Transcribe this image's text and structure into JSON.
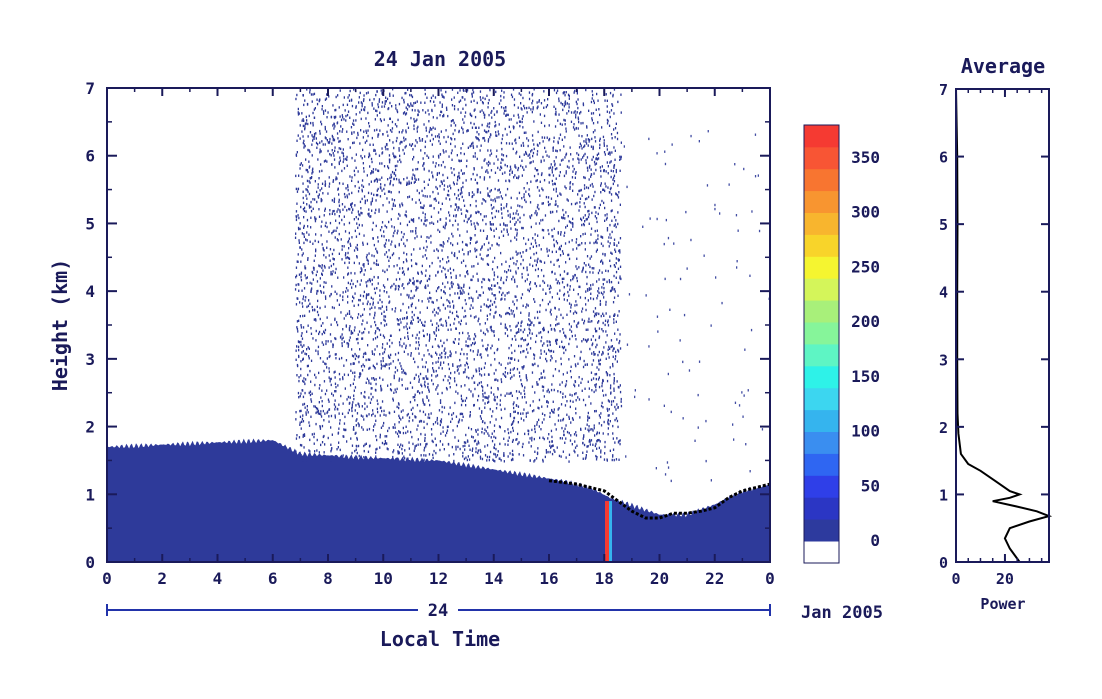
{
  "chart_data": [
    {
      "type": "heatmap",
      "title": "24 Jan 2005",
      "xlabel": "Local Time",
      "ylabel": "Height (km)",
      "xlim": [
        0,
        24
      ],
      "ylim": [
        0,
        7
      ],
      "x_ticks": [
        "0",
        "2",
        "4",
        "6",
        "8",
        "10",
        "12",
        "14",
        "16",
        "18",
        "20",
        "22",
        "0"
      ],
      "y_ticks": [
        "0",
        "1",
        "2",
        "3",
        "4",
        "5",
        "6",
        "7"
      ],
      "date_axis": {
        "day_label": "24",
        "month_label": "Jan 2005"
      },
      "colorbar": {
        "ticks": [
          "0",
          "50",
          "100",
          "150",
          "200",
          "250",
          "300",
          "350"
        ],
        "range": [
          -20,
          380
        ],
        "colors": [
          "#ffffff",
          "#2d3a9e",
          "#2b36c4",
          "#2f3fe8",
          "#2f66f2",
          "#3a8ef0",
          "#35b4ee",
          "#3cd6f0",
          "#2ef2e8",
          "#5ef5c4",
          "#86f59a",
          "#a8f07a",
          "#d4f55a",
          "#f5f530",
          "#f8d42a",
          "#f8b52e",
          "#f89530",
          "#f87530",
          "#f85534",
          "#f53a32"
        ]
      },
      "layers": [
        {
          "name": "boundary layer echo",
          "x_start": 0,
          "x_end": 24,
          "top_km": [
            [
              0,
              1.7
            ],
            [
              3,
              1.75
            ],
            [
              6,
              1.8
            ],
            [
              7,
              1.6
            ],
            [
              9,
              1.55
            ],
            [
              12,
              1.5
            ],
            [
              15,
              1.3
            ],
            [
              16.5,
              1.2
            ],
            [
              17.5,
              1.1
            ],
            [
              18.2,
              0.95
            ],
            [
              20,
              0.7
            ],
            [
              21,
              0.7
            ],
            [
              22,
              0.85
            ],
            [
              23,
              1.05
            ],
            [
              24,
              1.15
            ]
          ]
        },
        {
          "name": "daytime clear-air scatter",
          "x_start": 6.8,
          "x_end": 18.6,
          "bottom_km": 1.5,
          "top_km": 7
        },
        {
          "name": "sparse night scatter",
          "x_start": 18.6,
          "x_end": 24,
          "bottom_km": 1.2,
          "top_km": 6.5
        }
      ],
      "inversion_line_km": [
        [
          16,
          1.2
        ],
        [
          17,
          1.15
        ],
        [
          18,
          1.05
        ],
        [
          18.5,
          0.9
        ],
        [
          19,
          0.75
        ],
        [
          19.5,
          0.65
        ],
        [
          20,
          0.65
        ],
        [
          20.5,
          0.72
        ],
        [
          21,
          0.72
        ],
        [
          21.5,
          0.75
        ],
        [
          22,
          0.8
        ],
        [
          22.5,
          0.95
        ],
        [
          23,
          1.05
        ],
        [
          23.5,
          1.1
        ],
        [
          24,
          1.15
        ]
      ],
      "high_power_spike": {
        "x": 18.1,
        "value": 380
      }
    },
    {
      "type": "line",
      "title": "Average",
      "xlabel": "Power",
      "ylabel": "",
      "xlim": [
        0,
        38
      ],
      "ylim": [
        0,
        7
      ],
      "x_ticks": [
        "0",
        "20"
      ],
      "y_ticks": [
        "0",
        "1",
        "2",
        "3",
        "4",
        "5",
        "6",
        "7"
      ],
      "series": [
        {
          "points": [
            [
              0,
              7
            ],
            [
              0.5,
              6
            ],
            [
              0.6,
              5
            ],
            [
              0.5,
              4
            ],
            [
              0.5,
              3
            ],
            [
              0.6,
              2.2
            ],
            [
              1,
              1.9
            ],
            [
              2,
              1.6
            ],
            [
              5,
              1.45
            ],
            [
              10,
              1.35
            ],
            [
              16,
              1.2
            ],
            [
              22,
              1.05
            ],
            [
              26,
              1.0
            ],
            [
              22,
              0.95
            ],
            [
              15,
              0.9
            ],
            [
              25,
              0.82
            ],
            [
              33,
              0.75
            ],
            [
              38,
              0.68
            ],
            [
              30,
              0.6
            ],
            [
              22,
              0.5
            ],
            [
              20,
              0.35
            ],
            [
              22,
              0.2
            ],
            [
              25,
              0.05
            ],
            [
              26,
              0
            ]
          ]
        }
      ]
    }
  ]
}
